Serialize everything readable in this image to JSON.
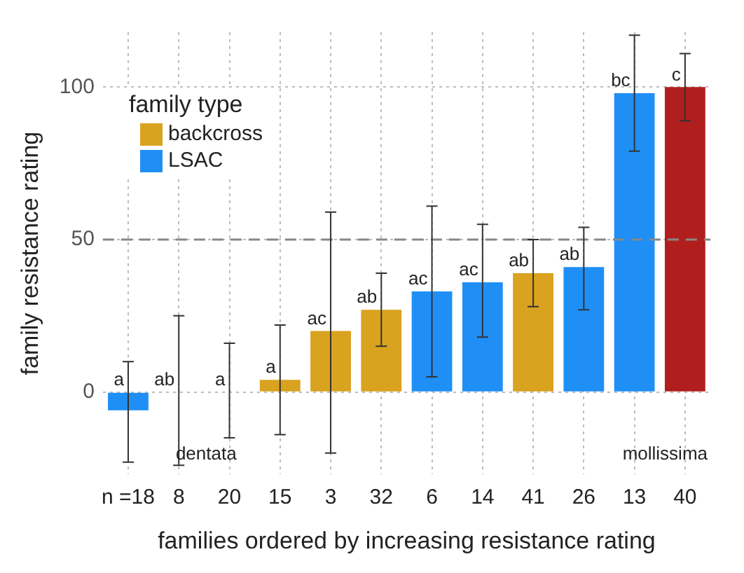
{
  "chart_data": {
    "type": "bar",
    "xlabel": "families ordered by increasing resistance rating",
    "ylabel": "family resistance rating",
    "categories": [
      "n =18",
      "8",
      "20",
      "15",
      "3",
      "32",
      "6",
      "14",
      "41",
      "26",
      "13",
      "40"
    ],
    "series": [
      {
        "name": "backcross",
        "color": "#d9a21f",
        "values": [
          null,
          null,
          null,
          4,
          20,
          27,
          null,
          null,
          39,
          null,
          null,
          null
        ],
        "errors": [
          null,
          null,
          null,
          [
            -14,
            22
          ],
          [
            -20,
            59
          ],
          [
            15,
            39
          ],
          null,
          null,
          [
            28,
            50
          ],
          null,
          null,
          null
        ],
        "value_labels": [
          null,
          null,
          null,
          "a",
          "ac",
          "ab",
          null,
          null,
          "ab",
          null,
          null,
          null
        ]
      },
      {
        "name": "LSAC",
        "color": "#1f8ff5",
        "values": [
          -6,
          null,
          null,
          null,
          null,
          null,
          33,
          36,
          null,
          41,
          98,
          null
        ],
        "errors": [
          [
            -23,
            10
          ],
          null,
          null,
          null,
          null,
          null,
          [
            5,
            61
          ],
          [
            18,
            55
          ],
          null,
          [
            27,
            54
          ],
          [
            79,
            117
          ],
          null
        ],
        "value_labels": [
          "a",
          null,
          null,
          null,
          null,
          null,
          "ac",
          "ac",
          null,
          "ab",
          "bc",
          null
        ]
      },
      {
        "color": "#9e9e9e",
        "values": [
          null,
          0,
          0,
          null,
          null,
          null,
          null,
          null,
          null,
          null,
          null,
          null
        ],
        "errors": [
          null,
          [
            -24,
            25
          ],
          [
            -15,
            16
          ],
          null,
          null,
          null,
          null,
          null,
          null,
          null,
          null,
          null
        ],
        "value_labels": [
          null,
          "ab",
          "a",
          null,
          null,
          null,
          null,
          null,
          null,
          null,
          null,
          null
        ]
      },
      {
        "color": "#b01e1e",
        "values": [
          null,
          null,
          null,
          null,
          null,
          null,
          null,
          null,
          null,
          null,
          null,
          100
        ],
        "errors": [
          null,
          null,
          null,
          null,
          null,
          null,
          null,
          null,
          null,
          null,
          null,
          [
            89,
            111
          ]
        ],
        "value_labels": [
          null,
          null,
          null,
          null,
          null,
          null,
          null,
          null,
          null,
          null,
          null,
          "c"
        ]
      }
    ],
    "ylim": [
      -27,
      118
    ],
    "yticks": [
      0,
      50,
      100
    ],
    "grid": true,
    "ref_lines": [
      {
        "axis": "y",
        "value": 50,
        "color": "#888888",
        "line_style": "dashed"
      }
    ],
    "legend": "top left",
    "legend_title": "family type",
    "annotations": [
      "dentata",
      "mollissima"
    ]
  }
}
